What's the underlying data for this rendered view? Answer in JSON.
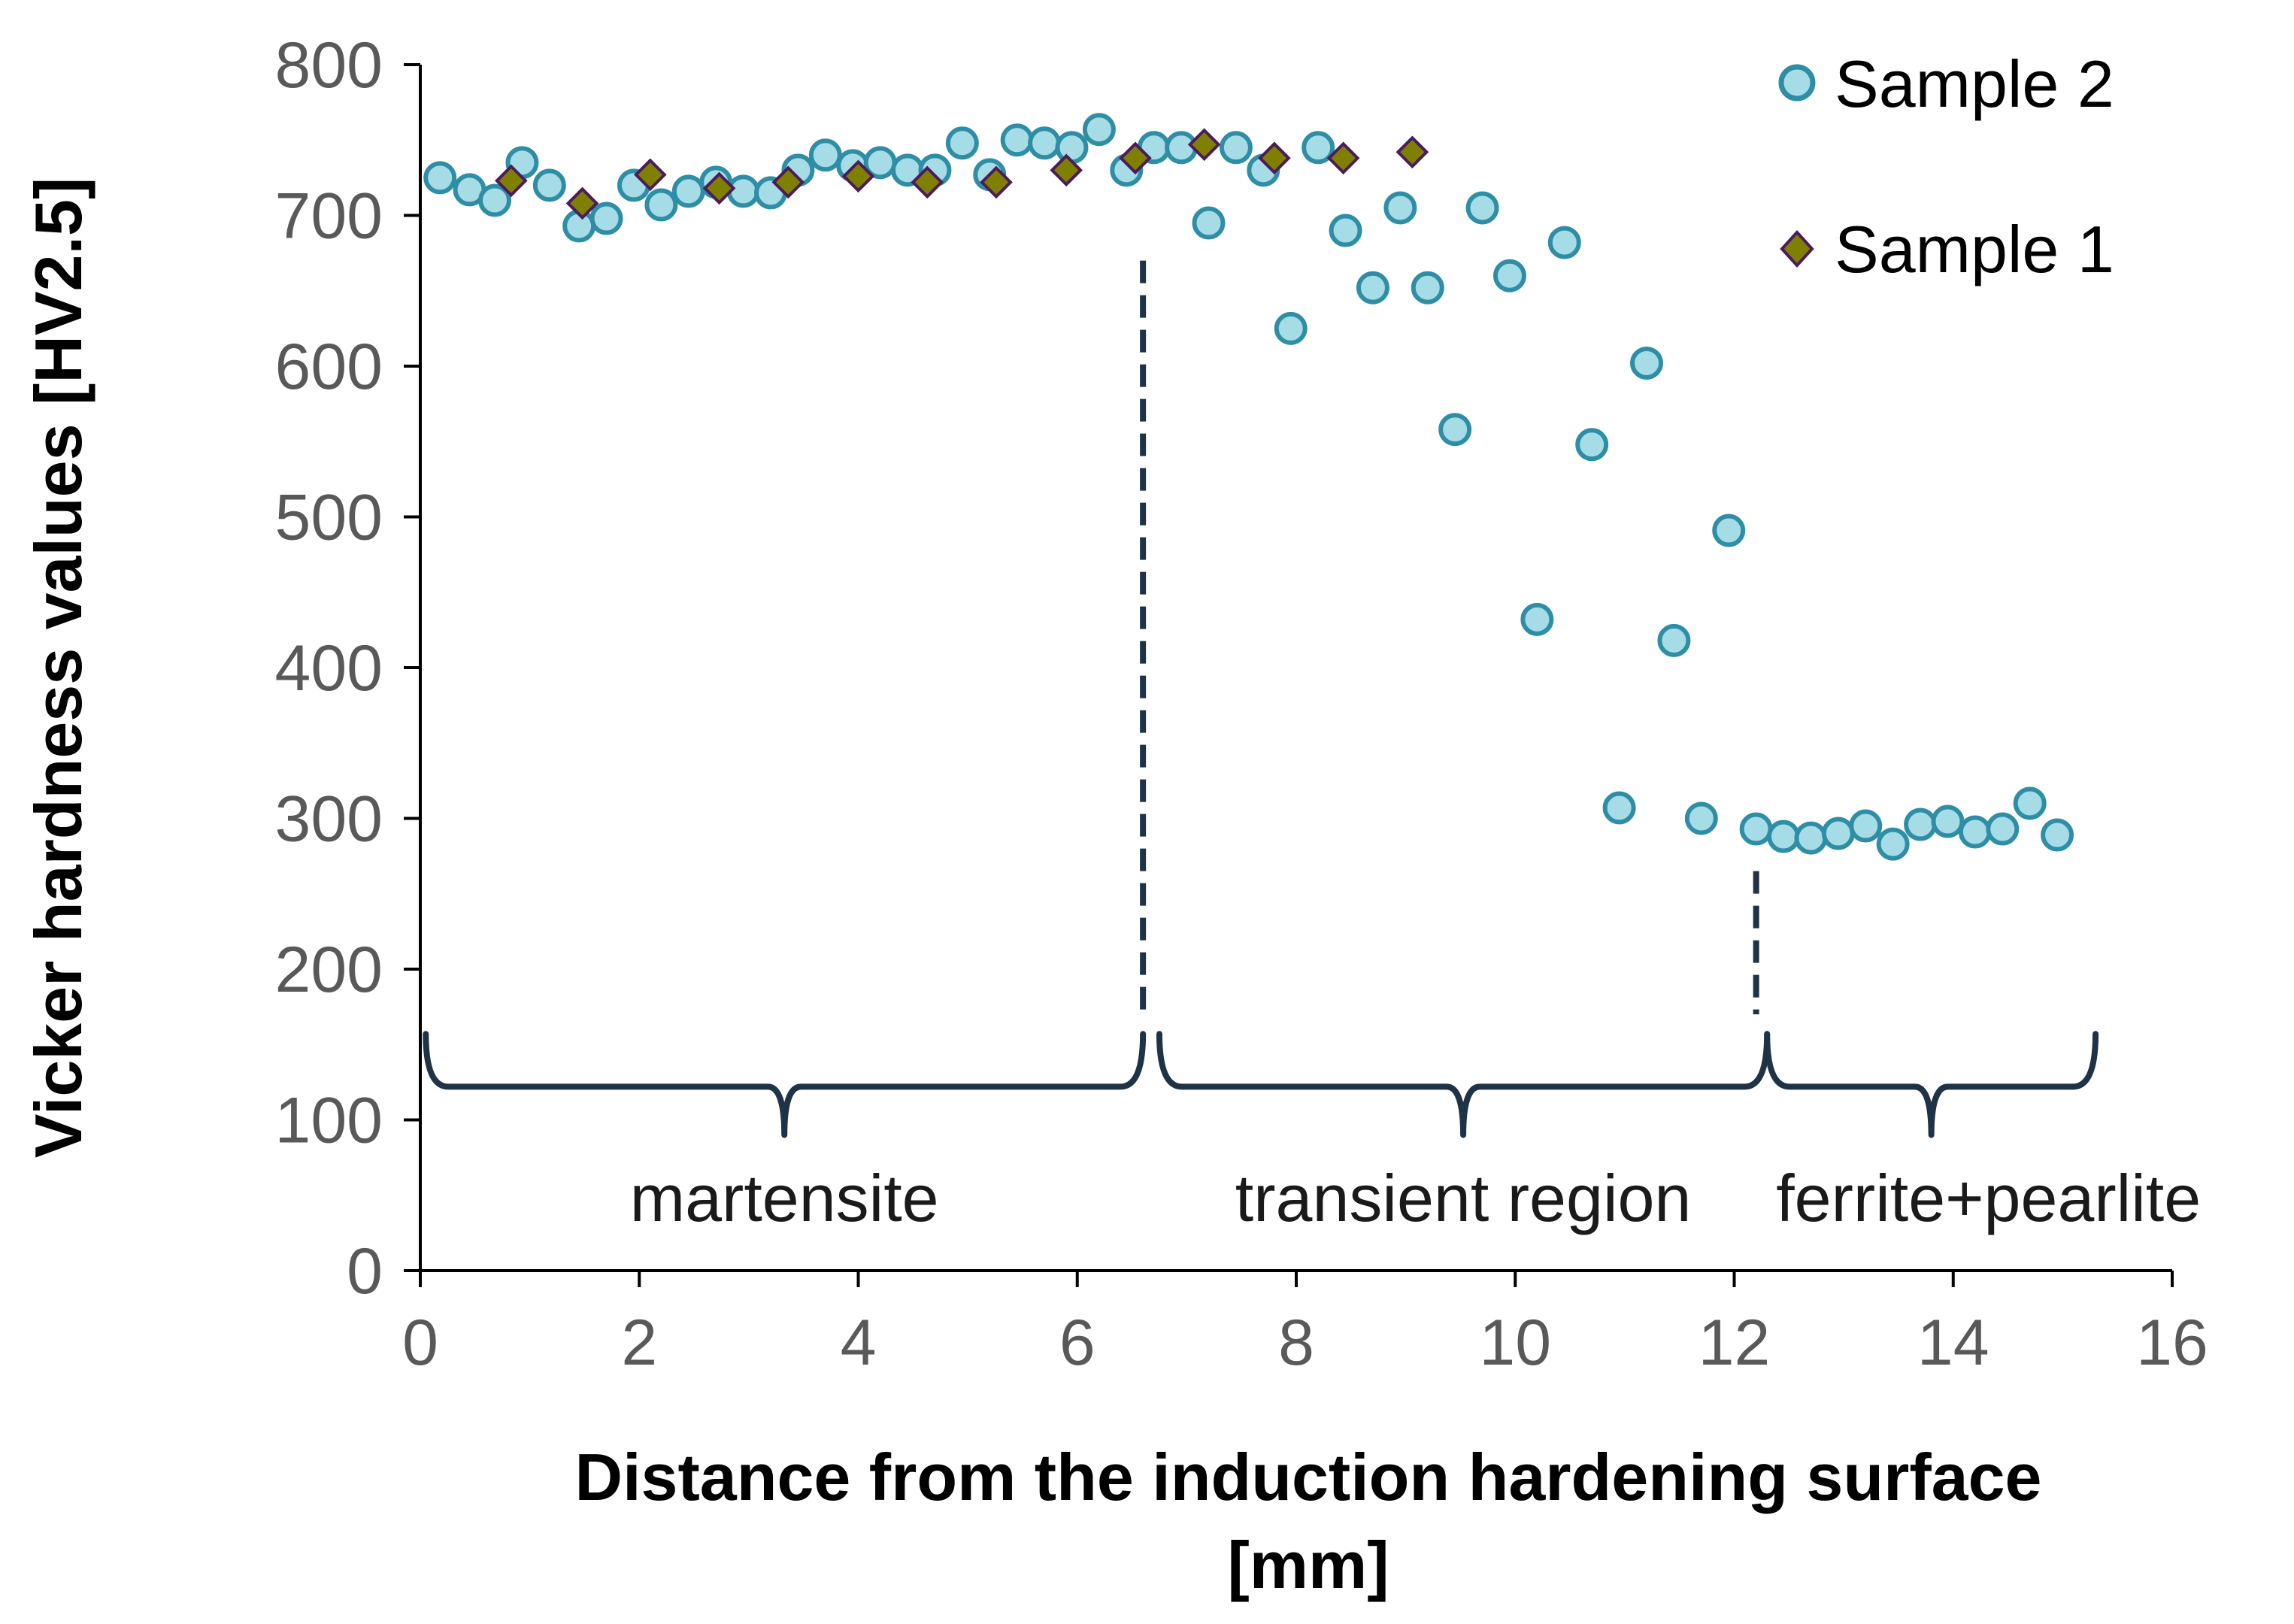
{
  "chart_data": {
    "type": "scatter",
    "title": "",
    "xlabel_line1": "Distance from the induction hardening surface",
    "xlabel_line2": "[mm]",
    "ylabel": "Vicker hardness values [HV2.5]",
    "xlim": [
      0,
      16
    ],
    "ylim": [
      0,
      800
    ],
    "xticks": [
      0,
      2,
      4,
      6,
      8,
      10,
      12,
      14,
      16
    ],
    "yticks": [
      0,
      100,
      200,
      300,
      400,
      500,
      600,
      700,
      800
    ],
    "grid": false,
    "legend_position": "top-right",
    "series": [
      {
        "name": "Sample 2",
        "marker": "circle",
        "fill": "#a6dce6",
        "stroke": "#2e8ea6",
        "points": [
          [
            0.18,
            725
          ],
          [
            0.45,
            717
          ],
          [
            0.68,
            710
          ],
          [
            0.93,
            735
          ],
          [
            1.18,
            720
          ],
          [
            1.45,
            693
          ],
          [
            1.7,
            698
          ],
          [
            1.95,
            720
          ],
          [
            2.2,
            707
          ],
          [
            2.45,
            716
          ],
          [
            2.7,
            722
          ],
          [
            2.95,
            716
          ],
          [
            3.2,
            715
          ],
          [
            3.45,
            730
          ],
          [
            3.7,
            740
          ],
          [
            3.95,
            733
          ],
          [
            4.2,
            735
          ],
          [
            4.45,
            730
          ],
          [
            4.7,
            730
          ],
          [
            4.95,
            748
          ],
          [
            5.2,
            727
          ],
          [
            5.45,
            750
          ],
          [
            5.7,
            748
          ],
          [
            5.95,
            745
          ],
          [
            6.2,
            757
          ],
          [
            6.45,
            730
          ],
          [
            6.7,
            745
          ],
          [
            6.95,
            745
          ],
          [
            7.2,
            695
          ],
          [
            7.45,
            745
          ],
          [
            7.7,
            730
          ],
          [
            7.95,
            625
          ],
          [
            8.2,
            745
          ],
          [
            8.45,
            690
          ],
          [
            8.7,
            652
          ],
          [
            8.95,
            705
          ],
          [
            9.2,
            652
          ],
          [
            9.45,
            558
          ],
          [
            9.7,
            705
          ],
          [
            9.95,
            660
          ],
          [
            10.2,
            432
          ],
          [
            10.45,
            682
          ],
          [
            10.7,
            548
          ],
          [
            10.95,
            307
          ],
          [
            11.2,
            602
          ],
          [
            11.45,
            418
          ],
          [
            11.7,
            300
          ],
          [
            11.95,
            491
          ],
          [
            12.2,
            293
          ],
          [
            12.45,
            288
          ],
          [
            12.7,
            287
          ],
          [
            12.95,
            290
          ],
          [
            13.2,
            295
          ],
          [
            13.45,
            283
          ],
          [
            13.7,
            296
          ],
          [
            13.95,
            298
          ],
          [
            14.2,
            291
          ],
          [
            14.45,
            293
          ],
          [
            14.7,
            310
          ],
          [
            14.95,
            289
          ]
        ]
      },
      {
        "name": "Sample 1",
        "marker": "diamond",
        "fill": "#808000",
        "stroke": "#4b1c5c",
        "points": [
          [
            0.83,
            723
          ],
          [
            1.48,
            708
          ],
          [
            2.1,
            727
          ],
          [
            2.73,
            718
          ],
          [
            3.36,
            722
          ],
          [
            4.0,
            726
          ],
          [
            4.63,
            722
          ],
          [
            5.26,
            722
          ],
          [
            5.9,
            730
          ],
          [
            6.53,
            738
          ],
          [
            7.16,
            747
          ],
          [
            7.8,
            738
          ],
          [
            8.43,
            738
          ],
          [
            9.06,
            742
          ]
        ]
      }
    ],
    "regions": [
      {
        "label": "martensite",
        "x_start": 0.05,
        "x_end": 6.6
      },
      {
        "label": "transient region",
        "x_start": 6.75,
        "x_end": 12.3
      },
      {
        "label": "ferrite+pearlite",
        "x_start": 12.3,
        "x_end": 15.3
      }
    ],
    "region_dividers": [
      {
        "x": 6.6,
        "y_from": 170,
        "y_to": 670
      },
      {
        "x": 12.2,
        "y_from": 170,
        "y_to": 265
      }
    ]
  }
}
